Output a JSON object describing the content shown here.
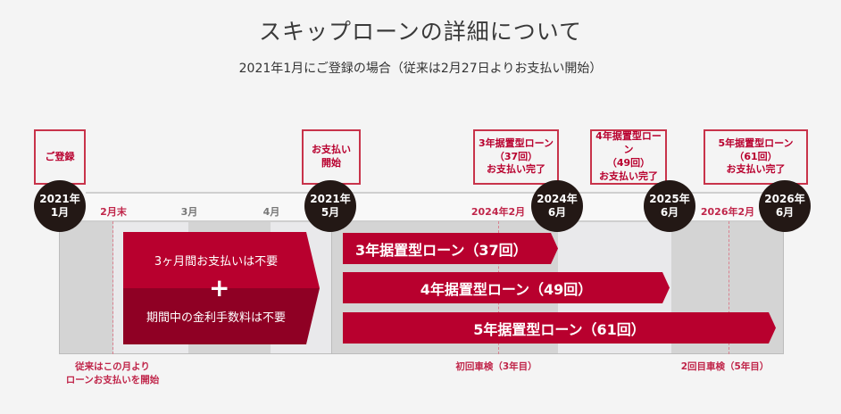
{
  "title": "スキップローンの詳細について",
  "subtitle": "2021年1月にご登録の場合（従来は2月27日よりお支払い開始）",
  "top_boxes": [
    "ご登録",
    "お支払い\n開始",
    "3年据置型ローン\n（37回）\nお支払い完了",
    "4年据置型ローン\n（49回）\nお支払い完了",
    "5年据置型ローン\n（61回）\nお支払い完了"
  ],
  "milestones": [
    "2021年\n1月",
    "2021年\n5月",
    "2024年\n6月",
    "2025年\n6月",
    "2026年\n6月"
  ],
  "month_labels": {
    "feb_end": "2月末",
    "mar": "3月",
    "apr": "4月",
    "feb2024": "2024年2月",
    "feb2026": "2026年2月"
  },
  "free_period": {
    "top": "3ヶ月間お支払いは不要",
    "plus": "+",
    "bottom": "期間中の金利手数料は不要"
  },
  "loans": [
    "3年据置型ローン（37回）",
    "4年据置型ローン（49回）",
    "5年据置型ローン（61回）"
  ],
  "notes": {
    "conventional": "従来はこの月より\nローンお支払いを開始",
    "inspection1": "初回車検（3年目）",
    "inspection2": "2回目車検（5年目）"
  },
  "colors": {
    "accent": "#b8002e",
    "dark_accent": "#8f0024",
    "circle": "#231815"
  }
}
